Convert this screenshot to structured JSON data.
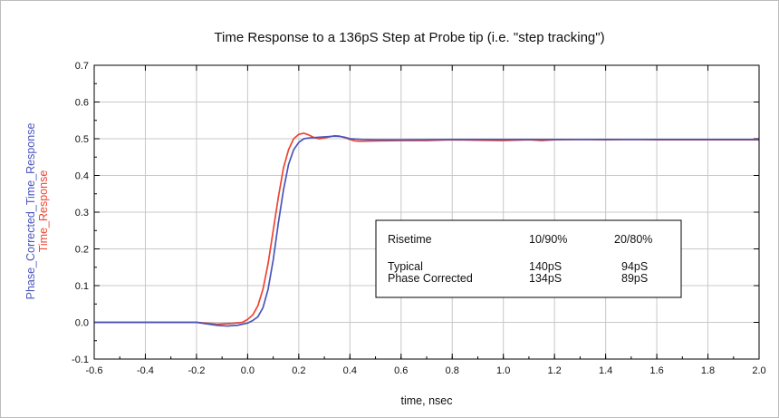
{
  "chart_data": {
    "type": "line",
    "title": "Time Response to a 136pS Step at Probe tip (i.e. \"step tracking\")",
    "xlabel": "time, nsec",
    "ylabels": [
      "Phase_Corrected_Time_Response",
      "Time_Response"
    ],
    "xlim": [
      -0.6,
      2.0
    ],
    "ylim": [
      -0.1,
      0.7
    ],
    "x_ticks": [
      "-0.6",
      "-0.4",
      "-0.2",
      "0.0",
      "0.2",
      "0.4",
      "0.6",
      "0.8",
      "1.0",
      "1.2",
      "1.4",
      "1.6",
      "1.8",
      "2.0"
    ],
    "y_ticks": [
      "-0.1",
      "0.0",
      "0.1",
      "0.2",
      "0.3",
      "0.4",
      "0.5",
      "0.6",
      "0.7"
    ],
    "grid": true,
    "series": [
      {
        "name": "Time_Response",
        "color": "#ee4433",
        "x": [
          -0.6,
          -0.4,
          -0.2,
          -0.12,
          -0.06,
          -0.02,
          0.0,
          0.02,
          0.04,
          0.06,
          0.08,
          0.1,
          0.12,
          0.14,
          0.16,
          0.18,
          0.2,
          0.22,
          0.24,
          0.26,
          0.28,
          0.3,
          0.32,
          0.34,
          0.36,
          0.38,
          0.4,
          0.42,
          0.44,
          0.5,
          0.6,
          0.7,
          0.8,
          0.9,
          1.0,
          1.1,
          1.15,
          1.2,
          1.3,
          1.4,
          1.5,
          1.6,
          1.8,
          2.0
        ],
        "y": [
          0.0,
          0.0,
          0.0,
          -0.005,
          -0.003,
          0.0,
          0.008,
          0.02,
          0.045,
          0.09,
          0.16,
          0.25,
          0.34,
          0.42,
          0.47,
          0.5,
          0.512,
          0.515,
          0.51,
          0.503,
          0.5,
          0.502,
          0.505,
          0.508,
          0.507,
          0.503,
          0.498,
          0.494,
          0.493,
          0.494,
          0.495,
          0.495,
          0.497,
          0.496,
          0.495,
          0.497,
          0.495,
          0.497,
          0.498,
          0.497,
          0.498,
          0.497,
          0.497,
          0.497
        ]
      },
      {
        "name": "Phase_Corrected_Time_Response",
        "color": "#4a55bb",
        "x": [
          -0.6,
          -0.4,
          -0.2,
          -0.12,
          -0.08,
          -0.04,
          0.0,
          0.02,
          0.04,
          0.06,
          0.08,
          0.1,
          0.12,
          0.14,
          0.16,
          0.18,
          0.2,
          0.22,
          0.24,
          0.26,
          0.28,
          0.3,
          0.32,
          0.34,
          0.36,
          0.38,
          0.4,
          0.45,
          0.5,
          0.6,
          0.8,
          1.0,
          1.2,
          1.4,
          1.6,
          1.8,
          2.0
        ],
        "y": [
          0.0,
          0.0,
          0.0,
          -0.008,
          -0.01,
          -0.008,
          -0.002,
          0.005,
          0.015,
          0.04,
          0.09,
          0.17,
          0.27,
          0.36,
          0.43,
          0.47,
          0.49,
          0.5,
          0.502,
          0.503,
          0.504,
          0.505,
          0.506,
          0.507,
          0.506,
          0.504,
          0.5,
          0.498,
          0.497,
          0.497,
          0.498,
          0.498,
          0.498,
          0.498,
          0.498,
          0.498,
          0.498
        ]
      }
    ],
    "annotation_table": {
      "header": [
        "Risetime",
        "10/90%",
        "20/80%"
      ],
      "rows": [
        [
          "Typical",
          "140pS",
          "94pS"
        ],
        [
          "Phase Corrected",
          "134pS",
          "89pS"
        ]
      ]
    }
  }
}
